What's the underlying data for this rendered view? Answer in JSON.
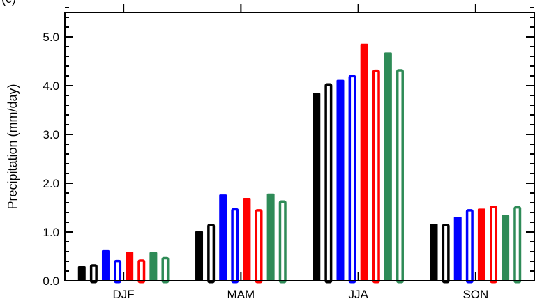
{
  "panel_label": "(c)",
  "chart_data": {
    "type": "bar",
    "categories": [
      "DJF",
      "MAM",
      "JJA",
      "SON"
    ],
    "ylabel": "Precipitation (mm/day)",
    "ylim": [
      0,
      5.5
    ],
    "yticks": [
      "0.0",
      "1.0",
      "2.0",
      "3.0",
      "4.0",
      "5.0"
    ],
    "yticks_values": [
      0,
      1,
      2,
      3,
      4,
      5
    ],
    "y_minor_step": 0.2,
    "grid": false,
    "legend": "none",
    "series": [
      {
        "color": "#000000",
        "style": "filled",
        "values": [
          0.3,
          1.02,
          3.85,
          1.17
        ]
      },
      {
        "color": "#000000",
        "style": "hollow",
        "values": [
          0.34,
          1.17,
          4.05,
          1.17
        ]
      },
      {
        "color": "#0000ff",
        "style": "filled",
        "values": [
          0.63,
          1.77,
          4.12,
          1.31
        ]
      },
      {
        "color": "#0000ff",
        "style": "hollow",
        "values": [
          0.43,
          1.49,
          4.22,
          1.47
        ]
      },
      {
        "color": "#ff0000",
        "style": "filled",
        "values": [
          0.6,
          1.7,
          4.86,
          1.48
        ]
      },
      {
        "color": "#ff0000",
        "style": "hollow",
        "values": [
          0.44,
          1.47,
          4.33,
          1.54
        ]
      },
      {
        "color": "#2e8b57",
        "style": "filled",
        "values": [
          0.59,
          1.79,
          4.68,
          1.35
        ]
      },
      {
        "color": "#2e8b57",
        "style": "hollow",
        "values": [
          0.49,
          1.65,
          4.34,
          1.53
        ]
      }
    ]
  }
}
